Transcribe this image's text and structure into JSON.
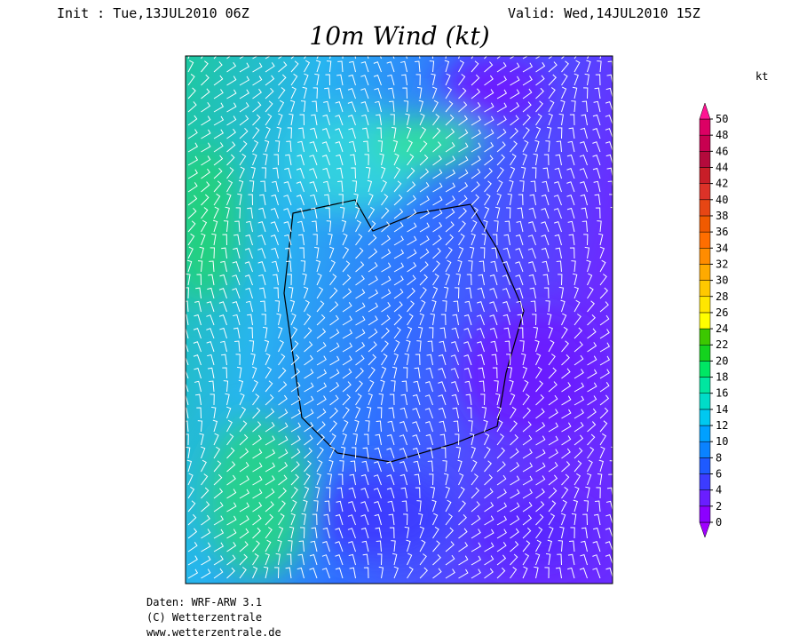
{
  "header": {
    "init": "Init : Tue,13JUL2010 06Z",
    "valid": "Valid: Wed,14JUL2010 15Z",
    "title": "10m Wind (kt)"
  },
  "colorbar": {
    "unit": "kt",
    "lim": [
      0,
      50
    ],
    "ticks": [
      0,
      2,
      4,
      6,
      8,
      10,
      12,
      14,
      16,
      18,
      20,
      22,
      24,
      26,
      28,
      30,
      32,
      34,
      36,
      38,
      40,
      42,
      44,
      46,
      48,
      50
    ],
    "colors": [
      "#a000ff",
      "#8c00ff",
      "#6a1eff",
      "#3c3cff",
      "#1e5aff",
      "#0a82ff",
      "#00a0ff",
      "#00c8f0",
      "#00dcc8",
      "#00e6a0",
      "#00e664",
      "#14d21e",
      "#3cc800",
      "#ffff00",
      "#ffe600",
      "#ffc800",
      "#ffaa00",
      "#ff8c00",
      "#ff6e00",
      "#f05a00",
      "#e64614",
      "#dc3228",
      "#c81e28",
      "#b40a3c",
      "#c80050",
      "#dc0064",
      "#ff1493"
    ]
  },
  "footer": {
    "source": "Daten: WRF-ARW 3.1",
    "copyright": "(C) Wetterzentrale",
    "url": "www.wetterzentrale.de"
  }
}
